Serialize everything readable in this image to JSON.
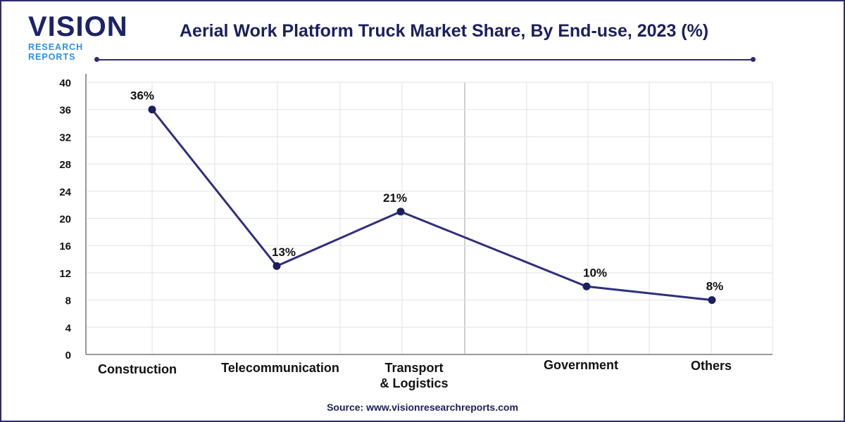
{
  "logo": {
    "main": "VISION",
    "sub": "RESEARCH REPORTS"
  },
  "source": "Source: www.visionresearchreports.com",
  "colors": {
    "line": "#2e2e7e",
    "marker": "#1b1f5e",
    "title": "#1b1f5e",
    "frame": "#2b2c6e"
  },
  "chart_data": {
    "type": "line",
    "title": "Aerial Work Platform Truck Market Share, By End-use, 2023 (%)",
    "categories": [
      "Construction",
      "Telecommunication",
      "Transport\n& Logistics",
      "Government",
      "Others"
    ],
    "values": [
      36,
      13,
      21,
      10,
      8
    ],
    "data_labels": [
      "36%",
      "13%",
      "21%",
      "10%",
      "8%"
    ],
    "yticks": [
      "0",
      "4",
      "8",
      "12",
      "16",
      "20",
      "24",
      "28",
      "32",
      "36",
      "40"
    ],
    "ylim": [
      0,
      40
    ],
    "grid": true,
    "xlabel": "",
    "ylabel": ""
  }
}
